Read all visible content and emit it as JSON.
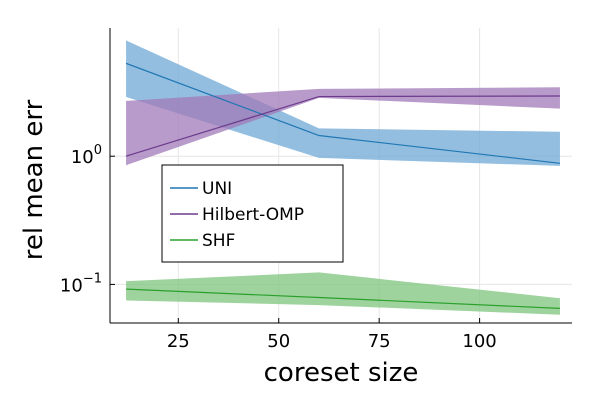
{
  "chart_data": {
    "type": "line",
    "xlabel": "coreset size",
    "ylabel": "rel mean err",
    "xlim": [
      8,
      123
    ],
    "ylim": [
      0.05,
      10
    ],
    "yscale": "log",
    "grid": true,
    "legend_position": "center-left",
    "x_ticks": [
      25,
      50,
      75,
      100
    ],
    "x_tick_labels": [
      "25",
      "50",
      "75",
      "100"
    ],
    "y_ticks": [
      {
        "value": 1,
        "base": "10",
        "exp": "0"
      },
      {
        "value": 0.1,
        "base": "10",
        "exp": "−1"
      }
    ],
    "series": [
      {
        "name": "UNI",
        "color": "#1f77b4",
        "fill_color": "#6fa8d6",
        "x": [
          12,
          60,
          120
        ],
        "y": [
          5.3,
          1.45,
          0.88
        ],
        "lower": [
          2.9,
          0.97,
          0.84
        ],
        "upper": [
          8.0,
          1.65,
          1.55
        ]
      },
      {
        "name": "Hilbert-OMP",
        "color": "#6c3b8c",
        "fill_color": "#a07ab8",
        "x": [
          12,
          60,
          120
        ],
        "y": [
          1.0,
          2.92,
          2.95
        ],
        "lower": [
          0.85,
          2.85,
          2.35
        ],
        "upper": [
          2.7,
          3.35,
          3.45
        ]
      },
      {
        "name": "SHF",
        "color": "#2ca02c",
        "fill_color": "#7dc47d",
        "x": [
          12,
          60,
          120
        ],
        "y": [
          0.092,
          0.079,
          0.065
        ],
        "lower": [
          0.075,
          0.069,
          0.058
        ],
        "upper": [
          0.106,
          0.124,
          0.078
        ]
      }
    ]
  }
}
